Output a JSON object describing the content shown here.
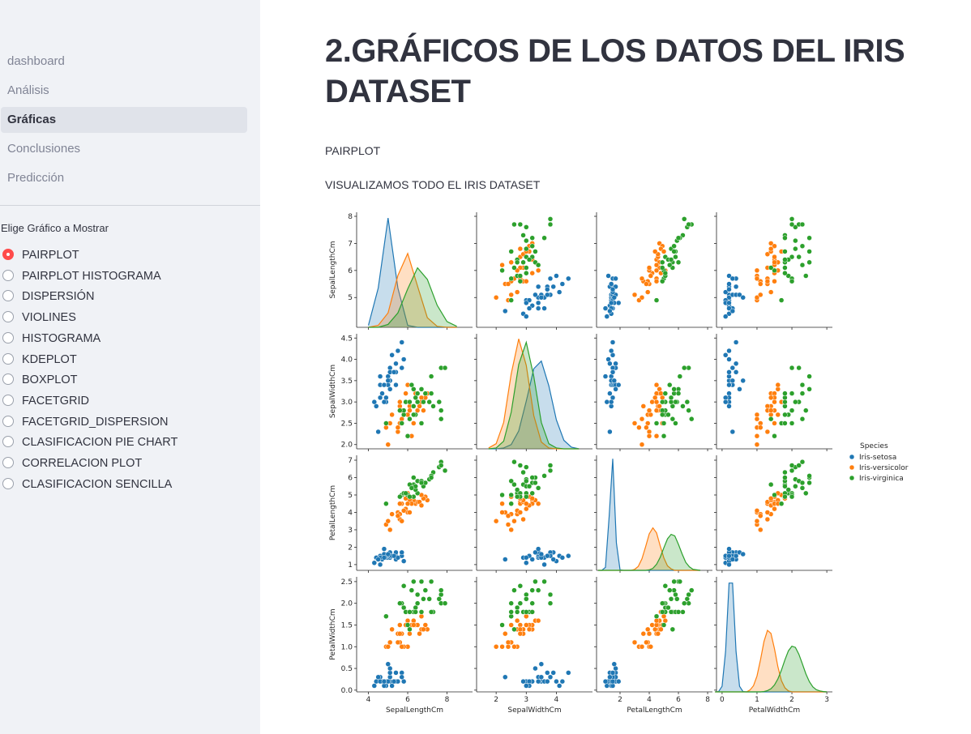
{
  "sidebar": {
    "nav": [
      "dashboard",
      "Análisis",
      "Gráficas",
      "Conclusiones",
      "Predicción"
    ],
    "nav_selected": 2,
    "radio_label": "Elige Gráfico a Mostrar",
    "options": [
      "PAIRPLOT",
      "PAIRPLOT HISTOGRAMA",
      "DISPERSIÓN",
      "VIOLINES",
      "HISTOGRAMA",
      "KDEPLOT",
      "BOXPLOT",
      "FACETGRID",
      "FACETGRID_DISPERSION",
      "CLASIFICACION PIE CHART",
      "CORRELACION PLOT",
      "CLASIFICACION SENCILLA"
    ],
    "option_selected": 0
  },
  "header": {
    "title": "2.GRÁFICOS DE LOS DATOS DEL IRIS DATASET"
  },
  "texts": [
    "PAIRPLOT",
    "VISUALIZAMOS TODO EL IRIS DATASET"
  ],
  "chart_data": {
    "type": "pairplot",
    "variables": [
      "SepalLengthCm",
      "SepalWidthCm",
      "PetalLengthCm",
      "PetalWidthCm"
    ],
    "legend_title": "Species",
    "axes": [
      {
        "xlim": [
          3.4,
          9.3
        ],
        "xticks": [
          4,
          6,
          8
        ],
        "ylim": [
          3.9,
          8.15
        ],
        "yticks": [
          5,
          6,
          7,
          8
        ],
        "density_lim": 1.2,
        "kde_grid": [
          4.0,
          4.5,
          5.0,
          5.5,
          6.0,
          6.5,
          7.0,
          7.5,
          8.0,
          8.5
        ]
      },
      {
        "xlim": [
          1.35,
          5.2
        ],
        "xticks": [
          2,
          3,
          4
        ],
        "ylim": [
          1.9,
          4.6
        ],
        "yticks": [
          {
            "value": 2,
            "label": "2.0"
          },
          2.5,
          {
            "value": 3,
            "label": "3.0"
          },
          3.5,
          {
            "value": 4,
            "label": "4.0"
          },
          4.5
        ],
        "density_lim": 1.35,
        "kde_grid": [
          1.75,
          2.0,
          2.25,
          2.5,
          2.75,
          3.0,
          3.25,
          3.5,
          3.75,
          4.0,
          4.25,
          4.5,
          4.75
        ]
      },
      {
        "xlim": [
          0.39,
          8.33
        ],
        "xticks": [
          2,
          4,
          6,
          8
        ],
        "ylim": [
          0.67,
          7.28
        ],
        "yticks": [
          1,
          2,
          3,
          4,
          5,
          6,
          7
        ],
        "density_lim": 2.3,
        "kde_grid": [
          0.5,
          0.75,
          1.0,
          1.25,
          1.5,
          1.75,
          2.0,
          2.25,
          2.5,
          2.75,
          3.0,
          3.25,
          3.5,
          3.75,
          4.0,
          4.25,
          4.5,
          4.75,
          5.0,
          5.25,
          5.5,
          5.75,
          6.0,
          6.25,
          6.5,
          6.75,
          7.0,
          7.25,
          7.5
        ]
      },
      {
        "xlim": [
          -0.16,
          3.16
        ],
        "xticks": [
          0,
          1,
          2,
          3
        ],
        "ylim": [
          -0.04,
          2.61
        ],
        "yticks": [
          {
            "value": 0,
            "label": "0.0"
          },
          0.5,
          {
            "value": 1,
            "label": "1.0"
          },
          1.5,
          {
            "value": 2,
            "label": "2.0"
          },
          2.5
        ],
        "density_lim": 3.7,
        "kde_grid": [
          -0.2,
          -0.1,
          0.0,
          0.1,
          0.2,
          0.3,
          0.4,
          0.5,
          0.6,
          0.7,
          0.8,
          0.9,
          1.0,
          1.1,
          1.2,
          1.3,
          1.4,
          1.5,
          1.6,
          1.7,
          1.8,
          1.9,
          2.0,
          2.1,
          2.2,
          2.3,
          2.4,
          2.5,
          2.6,
          2.7,
          2.8,
          2.9,
          3.0
        ]
      }
    ],
    "series": [
      {
        "name": "Iris-setosa",
        "color": "#1f77b4",
        "points": [
          [
            5.1,
            3.5,
            1.4,
            0.2
          ],
          [
            4.9,
            3.0,
            1.4,
            0.2
          ],
          [
            4.7,
            3.2,
            1.3,
            0.2
          ],
          [
            4.6,
            3.1,
            1.5,
            0.2
          ],
          [
            5.0,
            3.6,
            1.4,
            0.2
          ],
          [
            5.4,
            3.9,
            1.7,
            0.4
          ],
          [
            4.6,
            3.4,
            1.4,
            0.3
          ],
          [
            5.0,
            3.4,
            1.5,
            0.2
          ],
          [
            4.4,
            2.9,
            1.4,
            0.2
          ],
          [
            4.9,
            3.1,
            1.5,
            0.1
          ],
          [
            5.4,
            3.7,
            1.5,
            0.2
          ],
          [
            4.8,
            3.4,
            1.6,
            0.2
          ],
          [
            4.8,
            3.0,
            1.4,
            0.1
          ],
          [
            4.3,
            3.0,
            1.1,
            0.1
          ],
          [
            5.8,
            4.0,
            1.2,
            0.2
          ],
          [
            5.7,
            4.4,
            1.5,
            0.4
          ],
          [
            5.4,
            3.9,
            1.3,
            0.4
          ],
          [
            5.1,
            3.5,
            1.4,
            0.3
          ],
          [
            5.7,
            3.8,
            1.7,
            0.3
          ],
          [
            5.1,
            3.8,
            1.5,
            0.3
          ],
          [
            5.4,
            3.4,
            1.7,
            0.2
          ],
          [
            5.1,
            3.7,
            1.5,
            0.4
          ],
          [
            4.6,
            3.6,
            1.0,
            0.2
          ],
          [
            5.1,
            3.3,
            1.7,
            0.5
          ],
          [
            4.8,
            3.4,
            1.9,
            0.2
          ],
          [
            5.2,
            4.1,
            1.5,
            0.1
          ],
          [
            5.5,
            4.2,
            1.4,
            0.2
          ],
          [
            4.5,
            2.3,
            1.3,
            0.3
          ],
          [
            5.0,
            3.5,
            1.6,
            0.6
          ],
          [
            5.3,
            3.7,
            1.5,
            0.2
          ]
        ],
        "kde": [
          [
            0.02,
            0.41,
            1.14,
            0.41,
            0.02,
            0,
            0,
            0,
            0,
            0
          ],
          [
            0,
            0,
            0.01,
            0.05,
            0.21,
            0.56,
            0.94,
            1.03,
            0.74,
            0.34,
            0.1,
            0.02,
            0
          ],
          [
            0,
            0,
            0.06,
            1.06,
            2.23,
            0.55,
            0.01,
            0,
            0,
            0,
            0,
            0,
            0,
            0,
            0,
            0,
            0,
            0,
            0,
            0,
            0,
            0,
            0,
            0,
            0,
            0,
            0,
            0,
            0
          ],
          [
            0,
            0.01,
            0.18,
            1.3,
            3.5,
            3.5,
            1.3,
            0.18,
            0.01,
            0,
            0,
            0,
            0,
            0,
            0,
            0,
            0,
            0,
            0,
            0,
            0,
            0,
            0,
            0,
            0,
            0,
            0,
            0,
            0,
            0,
            0,
            0,
            0
          ]
        ]
      },
      {
        "name": "Iris-versicolor",
        "color": "#ff7f0e",
        "points": [
          [
            7.0,
            3.2,
            4.7,
            1.4
          ],
          [
            6.4,
            3.2,
            4.5,
            1.5
          ],
          [
            6.9,
            3.1,
            4.9,
            1.5
          ],
          [
            5.5,
            2.3,
            4.0,
            1.3
          ],
          [
            6.5,
            2.8,
            4.6,
            1.5
          ],
          [
            5.7,
            2.8,
            4.5,
            1.3
          ],
          [
            6.3,
            3.3,
            4.7,
            1.6
          ],
          [
            4.9,
            2.4,
            3.3,
            1.0
          ],
          [
            6.6,
            2.9,
            4.6,
            1.3
          ],
          [
            5.2,
            2.7,
            3.9,
            1.4
          ],
          [
            5.0,
            2.0,
            3.5,
            1.0
          ],
          [
            5.9,
            3.0,
            4.2,
            1.5
          ],
          [
            6.0,
            2.2,
            4.0,
            1.0
          ],
          [
            6.1,
            2.9,
            4.7,
            1.4
          ],
          [
            5.6,
            2.9,
            3.6,
            1.3
          ],
          [
            6.7,
            3.1,
            4.4,
            1.4
          ],
          [
            5.6,
            3.0,
            4.5,
            1.5
          ],
          [
            5.8,
            2.7,
            4.1,
            1.0
          ],
          [
            6.2,
            2.2,
            4.5,
            1.5
          ],
          [
            5.6,
            2.5,
            3.9,
            1.1
          ],
          [
            5.9,
            3.2,
            4.8,
            1.8
          ],
          [
            6.1,
            2.8,
            4.0,
            1.3
          ],
          [
            6.3,
            2.5,
            4.9,
            1.5
          ],
          [
            6.8,
            2.8,
            4.8,
            1.4
          ],
          [
            6.0,
            3.4,
            4.5,
            1.6
          ],
          [
            5.1,
            2.5,
            3.0,
            1.1
          ],
          [
            5.7,
            2.6,
            3.5,
            1.0
          ],
          [
            6.7,
            3.0,
            5.0,
            1.7
          ],
          [
            5.5,
            2.4,
            3.8,
            1.1
          ],
          [
            6.0,
            2.7,
            5.1,
            1.6
          ]
        ],
        "kde": [
          [
            0,
            0.02,
            0.15,
            0.54,
            0.77,
            0.43,
            0.1,
            0.01,
            0,
            0
          ],
          [
            0.01,
            0.06,
            0.31,
            0.88,
            1.29,
            0.98,
            0.39,
            0.08,
            0.01,
            0,
            0,
            0,
            0
          ],
          [
            0,
            0,
            0,
            0,
            0,
            0,
            0,
            0,
            0,
            0,
            0.02,
            0.08,
            0.23,
            0.47,
            0.73,
            0.85,
            0.75,
            0.49,
            0.25,
            0.09,
            0.03,
            0,
            0,
            0,
            0,
            0,
            0,
            0,
            0
          ],
          [
            0,
            0,
            0,
            0,
            0,
            0,
            0,
            0,
            0,
            0,
            0.06,
            0.2,
            0.51,
            1.03,
            1.62,
            1.98,
            1.88,
            1.39,
            0.8,
            0.36,
            0.13,
            0.03,
            0,
            0,
            0,
            0,
            0,
            0,
            0,
            0,
            0,
            0,
            0
          ]
        ]
      },
      {
        "name": "Iris-virginica",
        "color": "#2ca02c",
        "points": [
          [
            6.3,
            3.3,
            6.0,
            2.5
          ],
          [
            5.8,
            2.7,
            5.1,
            1.9
          ],
          [
            7.1,
            3.0,
            5.9,
            2.1
          ],
          [
            6.3,
            2.9,
            5.6,
            1.8
          ],
          [
            6.5,
            3.0,
            5.8,
            2.2
          ],
          [
            7.6,
            3.0,
            6.6,
            2.1
          ],
          [
            4.9,
            2.5,
            4.5,
            1.7
          ],
          [
            7.3,
            2.9,
            6.3,
            1.8
          ],
          [
            6.7,
            2.5,
            5.8,
            1.8
          ],
          [
            7.2,
            3.6,
            6.1,
            2.5
          ],
          [
            6.5,
            3.2,
            5.1,
            2.0
          ],
          [
            6.4,
            2.7,
            5.3,
            1.9
          ],
          [
            6.8,
            3.0,
            5.5,
            2.1
          ],
          [
            5.7,
            2.5,
            5.0,
            2.0
          ],
          [
            5.8,
            2.8,
            5.1,
            2.4
          ],
          [
            7.7,
            3.8,
            6.7,
            2.2
          ],
          [
            7.7,
            2.6,
            6.9,
            2.3
          ],
          [
            6.0,
            2.2,
            5.0,
            1.5
          ],
          [
            6.9,
            3.2,
            5.7,
            2.3
          ],
          [
            5.6,
            2.8,
            4.9,
            2.0
          ],
          [
            7.7,
            2.8,
            6.7,
            2.0
          ],
          [
            6.3,
            2.7,
            4.9,
            1.8
          ],
          [
            7.9,
            3.8,
            6.4,
            2.0
          ],
          [
            6.1,
            2.6,
            5.6,
            1.4
          ],
          [
            6.4,
            3.1,
            5.5,
            1.8
          ],
          [
            6.2,
            3.4,
            5.4,
            2.3
          ],
          [
            5.9,
            3.0,
            5.1,
            1.8
          ],
          [
            6.7,
            3.3,
            5.7,
            2.5
          ],
          [
            7.2,
            3.2,
            6.0,
            1.8
          ],
          [
            6.1,
            3.0,
            4.9,
            1.8
          ]
        ],
        "kde": [
          [
            0,
            0,
            0.03,
            0.15,
            0.4,
            0.62,
            0.5,
            0.23,
            0.06,
            0.01
          ],
          [
            0,
            0.01,
            0.09,
            0.43,
            0.99,
            1.25,
            0.85,
            0.31,
            0.06,
            0.01,
            0,
            0,
            0
          ],
          [
            0,
            0,
            0,
            0,
            0,
            0,
            0,
            0,
            0,
            0,
            0,
            0,
            0,
            0,
            0.01,
            0.04,
            0.12,
            0.26,
            0.45,
            0.63,
            0.72,
            0.69,
            0.52,
            0.33,
            0.16,
            0.07,
            0.02,
            0.01,
            0
          ],
          [
            0,
            0,
            0,
            0,
            0,
            0,
            0,
            0,
            0,
            0,
            0,
            0,
            0,
            0,
            0.01,
            0.04,
            0.1,
            0.22,
            0.42,
            0.7,
            1.03,
            1.32,
            1.47,
            1.43,
            1.21,
            0.9,
            0.58,
            0.33,
            0.16,
            0.07,
            0.03,
            0.01,
            0
          ]
        ]
      }
    ]
  }
}
